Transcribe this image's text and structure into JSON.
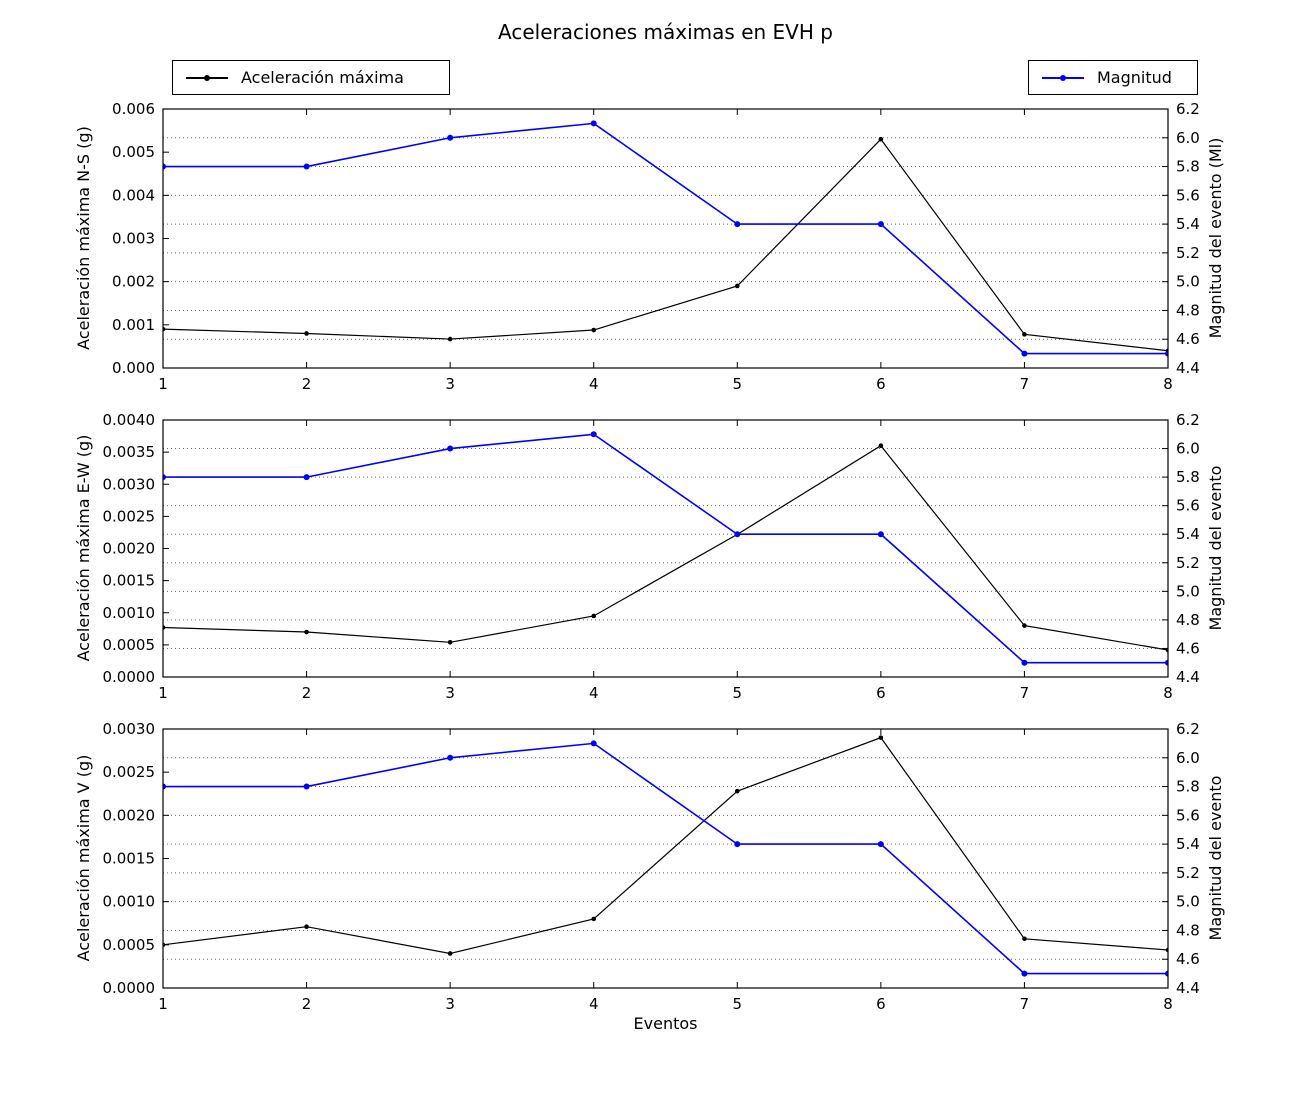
{
  "title": "Aceleraciones máximas en EVH p",
  "xlabel": "Eventos",
  "legend": {
    "acceleration": {
      "label": "Aceleración máxima",
      "color": "#000000"
    },
    "magnitude": {
      "label": "Magnitud",
      "color": "#0000ff"
    }
  },
  "colors": {
    "acceleration": "#000000",
    "magnitude": "#0000ff",
    "grid": "#666666",
    "axis": "#000000",
    "background": "#ffffff"
  },
  "chart_data": [
    {
      "type": "line",
      "x": [
        1,
        2,
        3,
        4,
        5,
        6,
        7,
        8
      ],
      "xticks": [
        "1",
        "2",
        "3",
        "4",
        "5",
        "6",
        "7",
        "8"
      ],
      "xlim": [
        1,
        8
      ],
      "ylabel_left": "Aceleración máxima N-S (g)",
      "ylabel_right": "Magnitud del evento (Ml)",
      "ylim_left": [
        0,
        0.006
      ],
      "ytick_labels_left": [
        "0.000",
        "0.001",
        "0.002",
        "0.003",
        "0.004",
        "0.005",
        "0.006"
      ],
      "ylim_right": [
        4.4,
        6.2
      ],
      "ytick_labels_right": [
        "4.4",
        "4.6",
        "4.8",
        "5.0",
        "5.2",
        "5.4",
        "5.6",
        "5.8",
        "6.0",
        "6.2"
      ],
      "grid": "horizontal-dotted-at-right-ticks",
      "legend_position": "outside-top",
      "series": [
        {
          "name": "Aceleración máxima",
          "axis": "left",
          "color": "#000000",
          "values": [
            0.0009,
            0.0008,
            0.00067,
            0.00088,
            0.0019,
            0.0053,
            0.00078,
            0.0004
          ]
        },
        {
          "name": "Magnitud",
          "axis": "right",
          "color": "#0000ff",
          "values": [
            5.8,
            5.8,
            6.0,
            6.1,
            5.4,
            5.4,
            4.5,
            4.5
          ]
        }
      ]
    },
    {
      "type": "line",
      "x": [
        1,
        2,
        3,
        4,
        5,
        6,
        7,
        8
      ],
      "xticks": [
        "1",
        "2",
        "3",
        "4",
        "5",
        "6",
        "7",
        "8"
      ],
      "xlim": [
        1,
        8
      ],
      "ylabel_left": "Aceleración máxima E-W (g)",
      "ylabel_right": "Magnitud del evento",
      "ylim_left": [
        0,
        0.004
      ],
      "ytick_labels_left": [
        "0.0000",
        "0.0005",
        "0.0010",
        "0.0015",
        "0.0020",
        "0.0025",
        "0.0030",
        "0.0035",
        "0.0040"
      ],
      "ylim_right": [
        4.4,
        6.2
      ],
      "ytick_labels_right": [
        "4.4",
        "4.6",
        "4.8",
        "5.0",
        "5.2",
        "5.4",
        "5.6",
        "5.8",
        "6.0",
        "6.2"
      ],
      "grid": "horizontal-dotted-at-right-ticks",
      "series": [
        {
          "name": "Aceleración máxima",
          "axis": "left",
          "color": "#000000",
          "values": [
            0.00077,
            0.0007,
            0.00054,
            0.00095,
            0.00222,
            0.0036,
            0.0008,
            0.00042
          ]
        },
        {
          "name": "Magnitud",
          "axis": "right",
          "color": "#0000ff",
          "values": [
            5.8,
            5.8,
            6.0,
            6.1,
            5.4,
            5.4,
            4.5,
            4.5
          ]
        }
      ]
    },
    {
      "type": "line",
      "x": [
        1,
        2,
        3,
        4,
        5,
        6,
        7,
        8
      ],
      "xticks": [
        "1",
        "2",
        "3",
        "4",
        "5",
        "6",
        "7",
        "8"
      ],
      "xlim": [
        1,
        8
      ],
      "ylabel_left": "Aceleración máxima V (g)",
      "ylabel_right": "Magnitud del evento",
      "ylim_left": [
        0,
        0.003
      ],
      "ytick_labels_left": [
        "0.0000",
        "0.0005",
        "0.0010",
        "0.0015",
        "0.0020",
        "0.0025",
        "0.0030"
      ],
      "ylim_right": [
        4.4,
        6.2
      ],
      "ytick_labels_right": [
        "4.4",
        "4.6",
        "4.8",
        "5.0",
        "5.2",
        "5.4",
        "5.6",
        "5.8",
        "6.0",
        "6.2"
      ],
      "grid": "horizontal-dotted-at-right-ticks",
      "series": [
        {
          "name": "Aceleración máxima",
          "axis": "left",
          "color": "#000000",
          "values": [
            0.0005,
            0.00071,
            0.0004,
            0.0008,
            0.00228,
            0.0029,
            0.00057,
            0.00044
          ]
        },
        {
          "name": "Magnitud",
          "axis": "right",
          "color": "#0000ff",
          "values": [
            5.8,
            5.8,
            6.0,
            6.1,
            5.4,
            5.4,
            4.5,
            4.5
          ]
        }
      ]
    }
  ]
}
